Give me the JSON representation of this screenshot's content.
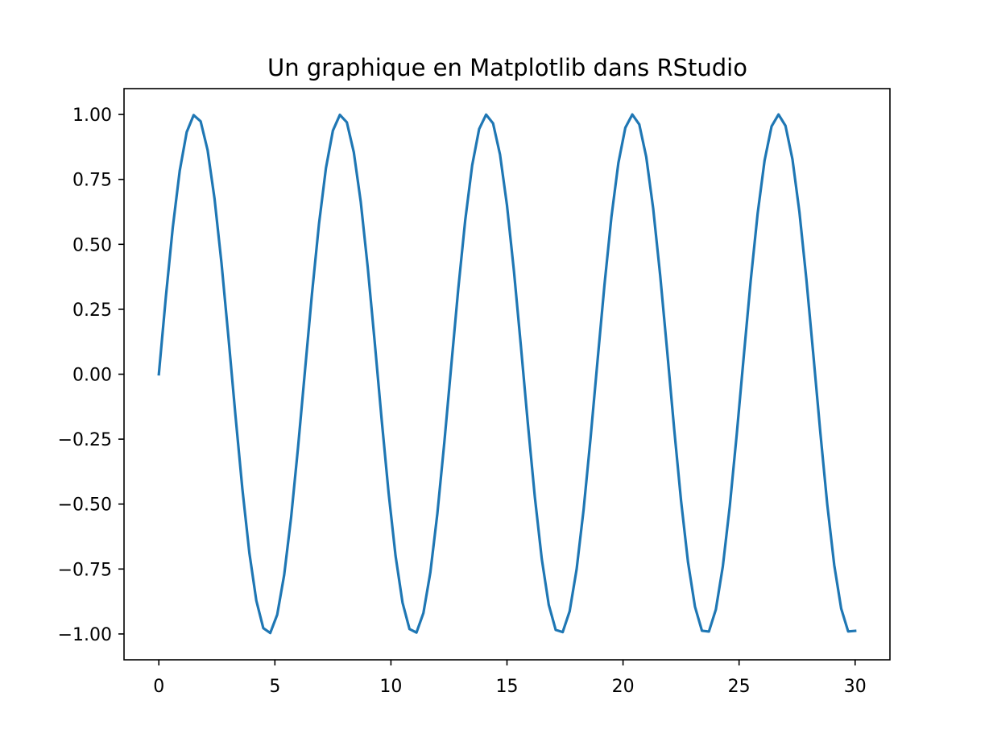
{
  "chart_data": {
    "type": "line",
    "title": "Un graphique en Matplotlib dans RStudio",
    "xlabel": "",
    "ylabel": "",
    "xlim": [
      -1.5,
      31.5
    ],
    "ylim": [
      -1.0995,
      1.0995
    ],
    "x_ticks": [
      0,
      5,
      10,
      15,
      20,
      25,
      30
    ],
    "x_tick_labels": [
      "0",
      "5",
      "10",
      "15",
      "20",
      "25",
      "30"
    ],
    "y_ticks": [
      1.0,
      0.75,
      0.5,
      0.25,
      0.0,
      -0.25,
      -0.5,
      -0.75,
      -1.0
    ],
    "y_tick_labels": [
      "1.00",
      "0.75",
      "0.50",
      "0.25",
      "0.00",
      "−0.25",
      "−0.50",
      "−0.75",
      "−1.00"
    ],
    "grid": false,
    "line_color": "#1f77b4",
    "series": [
      {
        "x": [
          0.0,
          0.3,
          0.6,
          0.9,
          1.2,
          1.5,
          1.8,
          2.1,
          2.4,
          2.7,
          3.0,
          3.3,
          3.6,
          3.9,
          4.2,
          4.5,
          4.8,
          5.1,
          5.4,
          5.7,
          6.0,
          6.3,
          6.6,
          6.9,
          7.2,
          7.5,
          7.8,
          8.1,
          8.4,
          8.7,
          9.0,
          9.3,
          9.6,
          9.9,
          10.2,
          10.5,
          10.8,
          11.1,
          11.4,
          11.7,
          12.0,
          12.3,
          12.6,
          12.9,
          13.2,
          13.5,
          13.8,
          14.1,
          14.4,
          14.7,
          15.0,
          15.3,
          15.6,
          15.9,
          16.2,
          16.5,
          16.8,
          17.1,
          17.4,
          17.7,
          18.0,
          18.3,
          18.6,
          18.9,
          19.2,
          19.5,
          19.8,
          20.1,
          20.4,
          20.7,
          21.0,
          21.3,
          21.6,
          21.9,
          22.2,
          22.5,
          22.8,
          23.1,
          23.4,
          23.7,
          24.0,
          24.3,
          24.6,
          24.9,
          25.2,
          25.5,
          25.8,
          26.1,
          26.4,
          26.7,
          27.0,
          27.3,
          27.6,
          27.9,
          28.2,
          28.5,
          28.8,
          29.1,
          29.4,
          29.7,
          30.0
        ],
        "y": [
          0.0,
          0.2955,
          0.5646,
          0.7833,
          0.932,
          0.9975,
          0.9738,
          0.8632,
          0.6755,
          0.4274,
          0.1411,
          -0.1577,
          -0.4425,
          -0.6878,
          -0.8716,
          -0.9775,
          -0.9962,
          -0.9258,
          -0.7728,
          -0.5507,
          -0.2794,
          0.0168,
          0.3115,
          0.5784,
          0.7937,
          0.938,
          0.9985,
          0.9699,
          0.8546,
          0.6629,
          0.4121,
          0.1245,
          -0.1743,
          -0.4575,
          -0.6999,
          -0.8797,
          -0.981,
          -0.9946,
          -0.9193,
          -0.762,
          -0.5366,
          -0.2632,
          0.0336,
          0.3275,
          0.5921,
          0.8038,
          0.9437,
          0.9993,
          0.9659,
          0.8458,
          0.6503,
          0.3967,
          0.1078,
          -0.1909,
          -0.4724,
          -0.7118,
          -0.8876,
          -0.9844,
          -0.9929,
          -0.9126,
          -0.751,
          -0.5223,
          -0.2469,
          0.0504,
          0.3434,
          0.6055,
          0.8137,
          0.9491,
          0.9999,
          0.9616,
          0.8367,
          0.6375,
          0.3811,
          0.0911,
          -0.2073,
          -0.4872,
          -0.7235,
          -0.8951,
          -0.9876,
          -0.9908,
          -0.9056,
          -0.7397,
          -0.5078,
          -0.2306,
          0.0672,
          0.3591,
          0.6188,
          0.8234,
          0.9542,
          0.9999,
          0.9564,
          0.8275,
          0.6245,
          0.3654,
          0.0743,
          -0.2237,
          -0.5017,
          -0.735,
          -0.9024,
          -0.9904,
          -0.988
        ]
      }
    ]
  }
}
